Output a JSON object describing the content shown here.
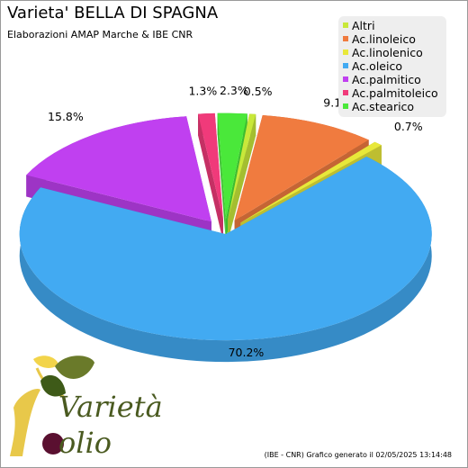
{
  "header": {
    "title": "Varieta' BELLA DI SPAGNA",
    "subtitle": "Elaborazioni AMAP Marche & IBE CNR"
  },
  "footer": {
    "text": "(IBE - CNR) Grafico generato il 02/05/2025 13:14:48"
  },
  "logo": {
    "line1": "Varietà",
    "line2": "olio"
  },
  "chart_data": {
    "type": "pie",
    "style": "3d-exploded",
    "legend_position": "top-right",
    "slices": [
      {
        "label": "Altri",
        "value": 0.5,
        "display": "0.5%",
        "color": "#c8e83a"
      },
      {
        "label": "Ac.linoleico",
        "value": 9.1,
        "display": "9.1%",
        "color": "#f07b3f"
      },
      {
        "label": "Ac.linolenico",
        "value": 0.7,
        "display": "0.7%",
        "color": "#e8e83a"
      },
      {
        "label": "Ac.oleico",
        "value": 70.2,
        "display": "70.2%",
        "color": "#42aaf2"
      },
      {
        "label": "Ac.palmitico",
        "value": 15.8,
        "display": "15.8%",
        "color": "#c040f0"
      },
      {
        "label": "Ac.palmitoleico",
        "value": 1.3,
        "display": "1.3%",
        "color": "#f03a7a"
      },
      {
        "label": "Ac.stearico",
        "value": 2.3,
        "display": "2.3%",
        "color": "#4ae83a"
      }
    ]
  }
}
